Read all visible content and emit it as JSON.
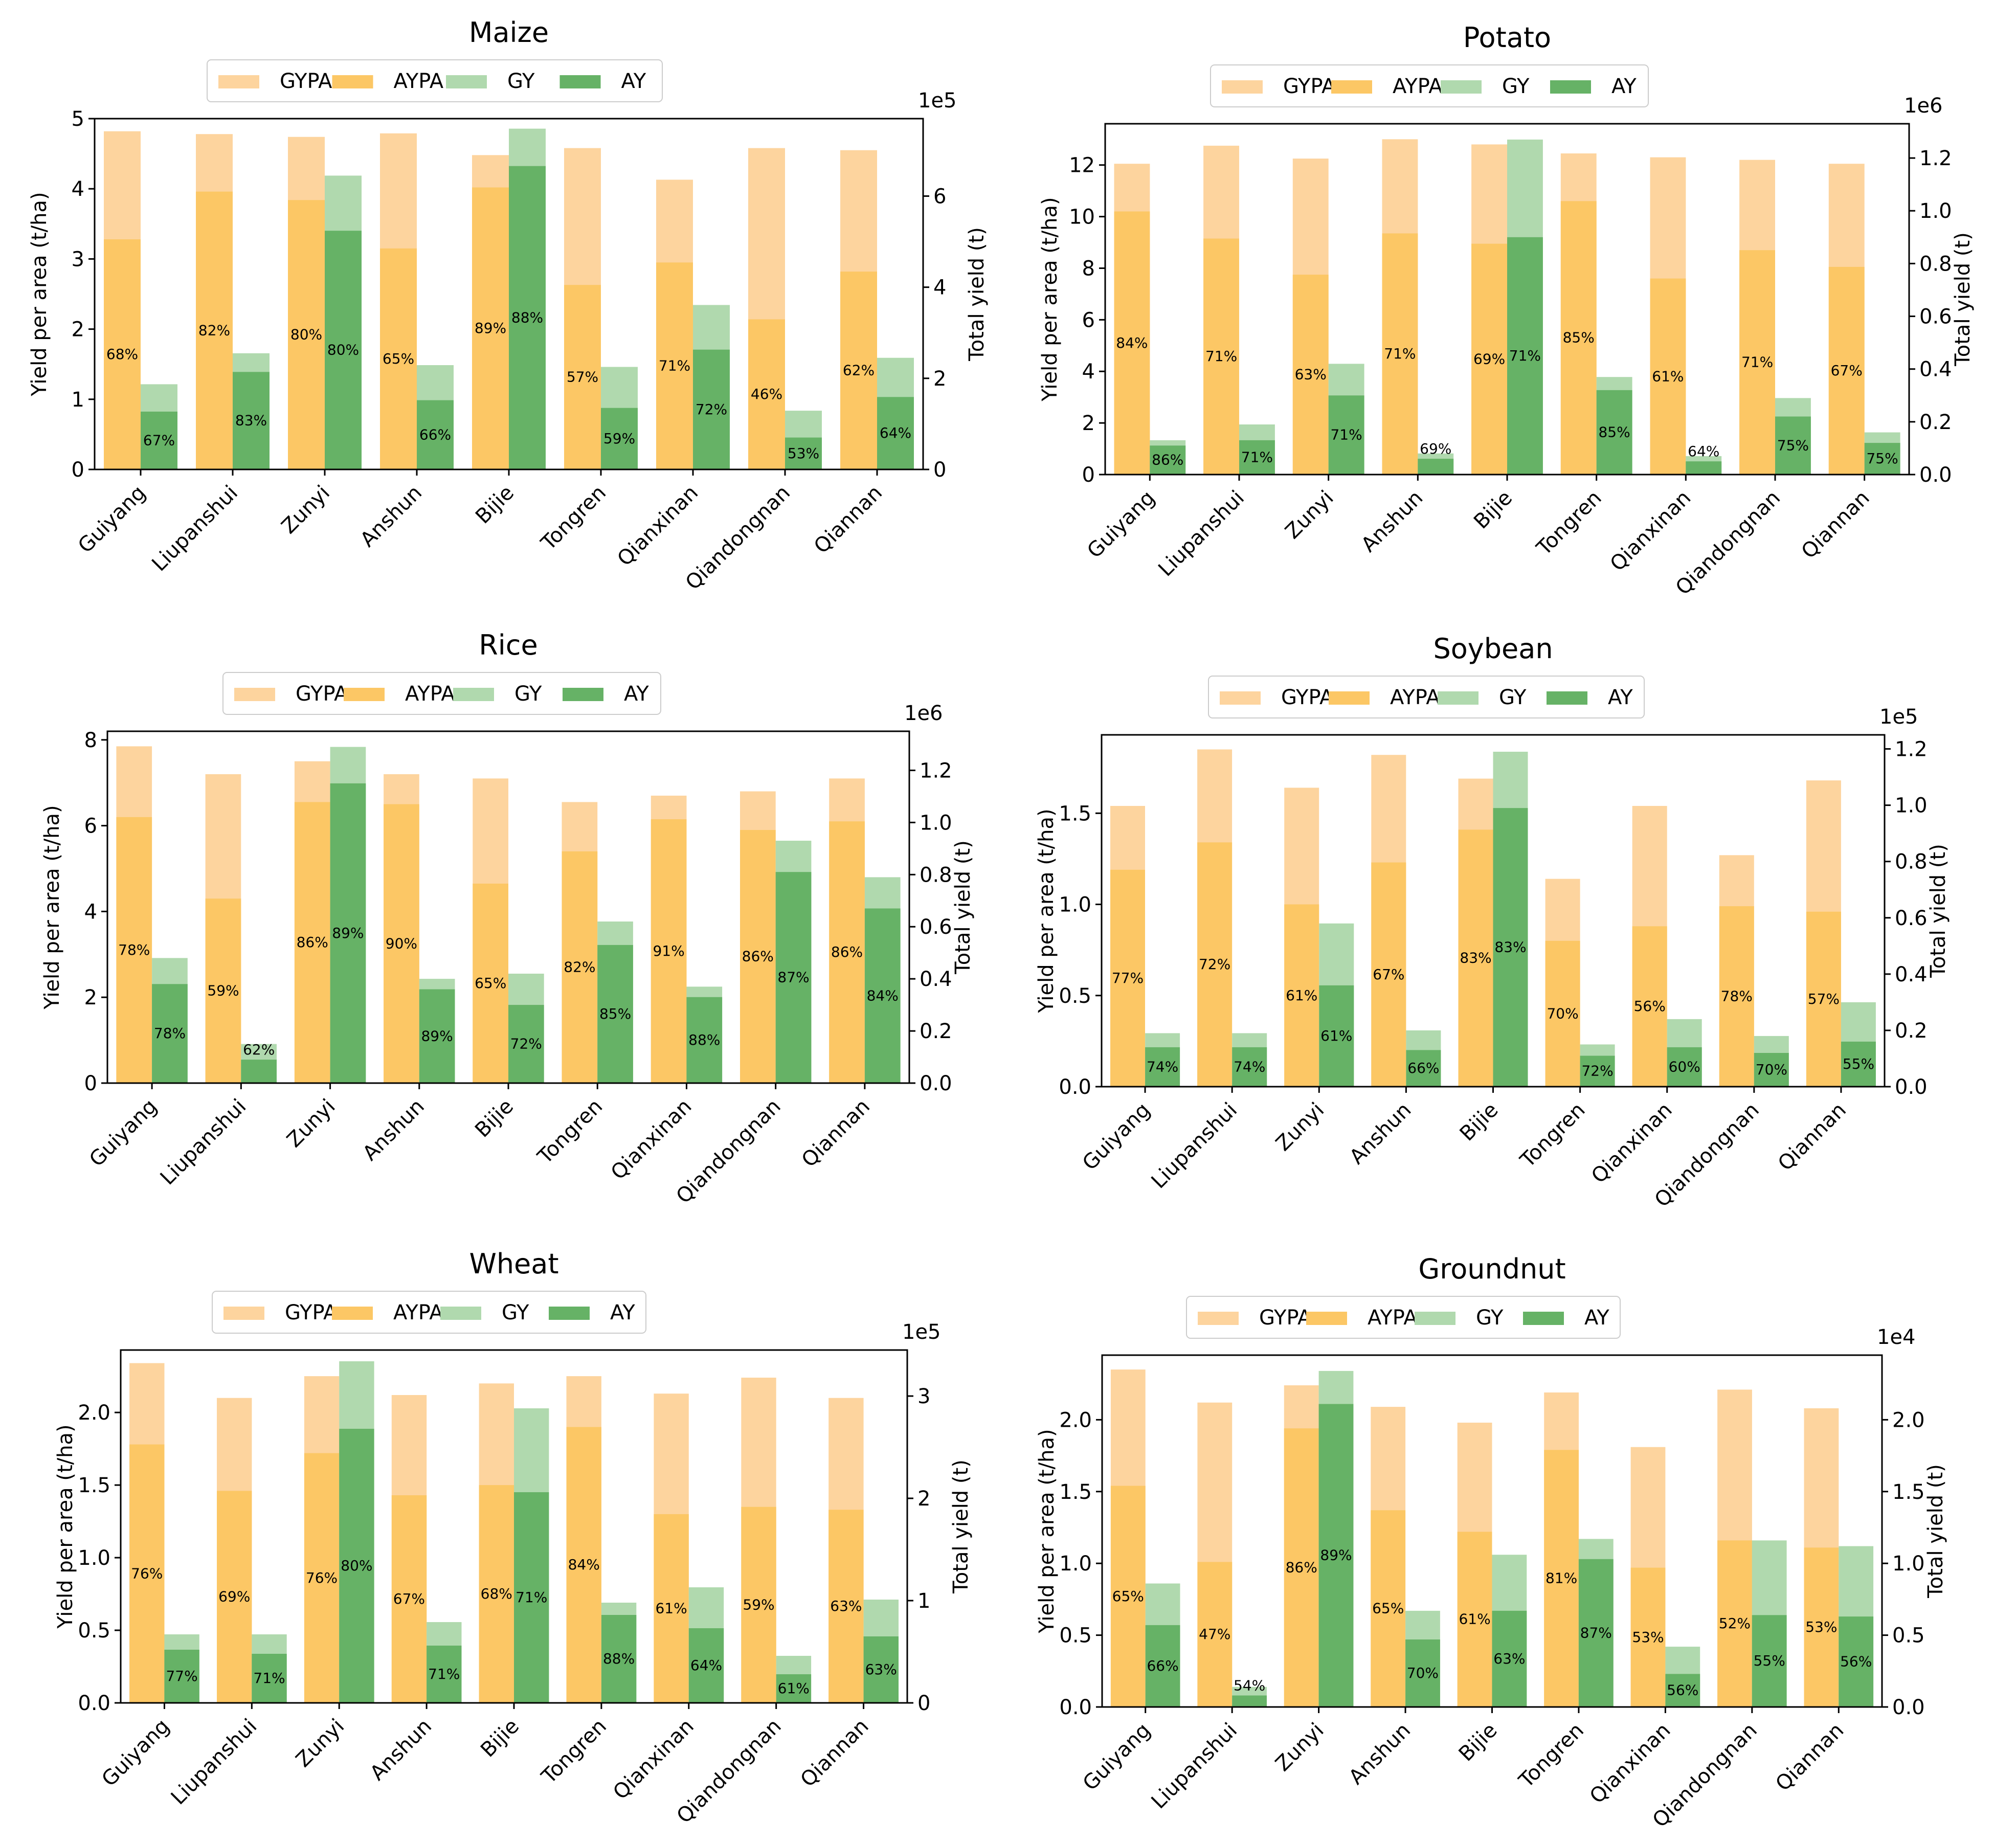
{
  "figure": {
    "left_axis_label": "Yield per area (t/ha)",
    "right_axis_label": "Total yield (t)"
  },
  "colors": {
    "GYPA": "#fdd49e",
    "AYPA": "#fcc765",
    "GY": "#b0d9ae",
    "AY": "#66b266",
    "axis": "#000000",
    "text": "#000000"
  },
  "chart_data": [
    {
      "type": "bar",
      "title": "Maize",
      "categories": [
        "Guiyang",
        "Liupanshui",
        "Zunyi",
        "Anshun",
        "Bijie",
        "Tongren",
        "Qianxinan",
        "Qiandongnan",
        "Qiannan"
      ],
      "legend": [
        "GYPA",
        "AYPA",
        "GY",
        "AY"
      ],
      "ylabel": "Yield per area (t/ha)",
      "ylim": [
        0,
        5
      ],
      "yticks": [
        0,
        1,
        2,
        3,
        4,
        5
      ],
      "ytick_labels": [
        "0",
        "1",
        "2",
        "3",
        "4",
        "5"
      ],
      "y2label": "Total yield (t)",
      "y2lim": [
        0,
        7.7
      ],
      "y2ticks": [
        0,
        2,
        4,
        6
      ],
      "y2tick_labels": [
        "0",
        "2",
        "4",
        "6"
      ],
      "y2_multiplier": "1e5",
      "series": [
        {
          "name": "GYPA",
          "axis": "left",
          "values": [
            4.82,
            4.78,
            4.74,
            4.79,
            4.48,
            4.58,
            4.13,
            4.58,
            4.55
          ]
        },
        {
          "name": "AYPA",
          "axis": "left",
          "values": [
            3.28,
            3.96,
            3.84,
            3.15,
            4.02,
            2.63,
            2.95,
            2.14,
            2.82
          ],
          "labels": [
            "68%",
            "82%",
            "80%",
            "65%",
            "89%",
            "57%",
            "71%",
            "46%",
            "62%"
          ]
        },
        {
          "name": "GY",
          "axis": "right",
          "values": [
            1.87,
            2.55,
            6.45,
            2.29,
            7.48,
            2.25,
            3.61,
            1.29,
            2.45
          ]
        },
        {
          "name": "AY",
          "axis": "right",
          "values": [
            1.27,
            2.14,
            5.24,
            1.52,
            6.66,
            1.35,
            2.63,
            0.7,
            1.59
          ],
          "labels": [
            "67%",
            "83%",
            "80%",
            "66%",
            "88%",
            "59%",
            "72%",
            "53%",
            "64%"
          ]
        }
      ]
    },
    {
      "type": "bar",
      "title": "Potato",
      "categories": [
        "Guiyang",
        "Liupanshui",
        "Zunyi",
        "Anshun",
        "Bijie",
        "Tongren",
        "Qianxinan",
        "Qiandongnan",
        "Qiannan"
      ],
      "legend": [
        "GYPA",
        "AYPA",
        "GY",
        "AY"
      ],
      "ylabel": "Yield per area (t/ha)",
      "ylim": [
        0,
        13.6
      ],
      "yticks": [
        0,
        2,
        4,
        6,
        8,
        10,
        12
      ],
      "ytick_labels": [
        "0",
        "2",
        "4",
        "6",
        "8",
        "10",
        "12"
      ],
      "y2label": "Total yield (t)",
      "y2lim": [
        0,
        1.33
      ],
      "y2ticks": [
        0,
        0.2,
        0.4,
        0.6,
        0.8,
        1.0,
        1.2
      ],
      "y2tick_labels": [
        "0.0",
        "0.2",
        "0.4",
        "0.6",
        "0.8",
        "1.0",
        "1.2"
      ],
      "y2_multiplier": "1e6",
      "series": [
        {
          "name": "GYPA",
          "axis": "left",
          "values": [
            12.05,
            12.75,
            12.25,
            13.0,
            12.8,
            12.45,
            12.3,
            12.2,
            12.05
          ]
        },
        {
          "name": "AYPA",
          "axis": "left",
          "values": [
            10.2,
            9.15,
            7.75,
            9.35,
            8.95,
            10.6,
            7.6,
            8.7,
            8.05
          ],
          "labels": [
            "84%",
            "71%",
            "63%",
            "71%",
            "69%",
            "85%",
            "61%",
            "71%",
            "67%"
          ]
        },
        {
          "name": "GY",
          "axis": "right",
          "values": [
            0.13,
            0.19,
            0.42,
            0.08,
            1.27,
            0.37,
            0.07,
            0.29,
            0.16
          ]
        },
        {
          "name": "AY",
          "axis": "right",
          "values": [
            0.11,
            0.13,
            0.3,
            0.06,
            0.9,
            0.32,
            0.05,
            0.22,
            0.12
          ],
          "labels": [
            "86%",
            "71%",
            "71%",
            "69%",
            "71%",
            "85%",
            "64%",
            "75%",
            "75%"
          ]
        }
      ]
    },
    {
      "type": "bar",
      "title": "Rice",
      "categories": [
        "Guiyang",
        "Liupanshui",
        "Zunyi",
        "Anshun",
        "Bijie",
        "Tongren",
        "Qianxinan",
        "Qiandongnan",
        "Qiannan"
      ],
      "legend": [
        "GYPA",
        "AYPA",
        "GY",
        "AY"
      ],
      "ylabel": "Yield per area (t/ha)",
      "ylim": [
        0,
        8.2
      ],
      "yticks": [
        0,
        2,
        4,
        6,
        8
      ],
      "ytick_labels": [
        "0",
        "2",
        "4",
        "6",
        "8"
      ],
      "y2label": "Total yield (t)",
      "y2lim": [
        0,
        1.35
      ],
      "y2ticks": [
        0,
        0.2,
        0.4,
        0.6,
        0.8,
        1.0,
        1.2
      ],
      "y2tick_labels": [
        "0.0",
        "0.2",
        "0.4",
        "0.6",
        "0.8",
        "1.0",
        "1.2"
      ],
      "y2_multiplier": "1e6",
      "series": [
        {
          "name": "GYPA",
          "axis": "left",
          "values": [
            7.85,
            7.2,
            7.5,
            7.2,
            7.1,
            6.55,
            6.7,
            6.8,
            7.1
          ]
        },
        {
          "name": "AYPA",
          "axis": "left",
          "values": [
            6.2,
            4.3,
            6.55,
            6.5,
            4.65,
            5.4,
            6.15,
            5.9,
            6.1
          ],
          "labels": [
            "78%",
            "59%",
            "86%",
            "90%",
            "65%",
            "82%",
            "91%",
            "86%",
            "86%"
          ]
        },
        {
          "name": "GY",
          "axis": "right",
          "values": [
            0.48,
            0.15,
            1.29,
            0.4,
            0.42,
            0.62,
            0.37,
            0.93,
            0.79
          ]
        },
        {
          "name": "AY",
          "axis": "right",
          "values": [
            0.38,
            0.09,
            1.15,
            0.36,
            0.3,
            0.53,
            0.33,
            0.81,
            0.67
          ],
          "labels": [
            "78%",
            "62%",
            "89%",
            "89%",
            "72%",
            "85%",
            "88%",
            "87%",
            "84%"
          ]
        }
      ]
    },
    {
      "type": "bar",
      "title": "Soybean",
      "categories": [
        "Guiyang",
        "Liupanshui",
        "Zunyi",
        "Anshun",
        "Bijie",
        "Tongren",
        "Qianxinan",
        "Qiandongnan",
        "Qiannan"
      ],
      "legend": [
        "GYPA",
        "AYPA",
        "GY",
        "AY"
      ],
      "ylabel": "Yield per area (t/ha)",
      "ylim": [
        0,
        1.93
      ],
      "yticks": [
        0,
        0.5,
        1.0,
        1.5
      ],
      "ytick_labels": [
        "0.0",
        "0.5",
        "1.0",
        "1.5"
      ],
      "y2label": "Total yield (t)",
      "y2lim": [
        0,
        1.25
      ],
      "y2ticks": [
        0,
        0.2,
        0.4,
        0.6,
        0.8,
        1.0,
        1.2
      ],
      "y2tick_labels": [
        "0.0",
        "0.2",
        "0.4",
        "0.6",
        "0.8",
        "1.0",
        "1.2"
      ],
      "y2_multiplier": "1e5",
      "series": [
        {
          "name": "GYPA",
          "axis": "left",
          "values": [
            1.54,
            1.85,
            1.64,
            1.82,
            1.69,
            1.14,
            1.54,
            1.27,
            1.68
          ]
        },
        {
          "name": "AYPA",
          "axis": "left",
          "values": [
            1.19,
            1.34,
            1.0,
            1.23,
            1.41,
            0.8,
            0.88,
            0.99,
            0.96
          ],
          "labels": [
            "77%",
            "72%",
            "61%",
            "67%",
            "83%",
            "70%",
            "56%",
            "78%",
            "57%"
          ]
        },
        {
          "name": "GY",
          "axis": "right",
          "values": [
            0.19,
            0.19,
            0.58,
            0.2,
            1.19,
            0.15,
            0.24,
            0.18,
            0.3
          ]
        },
        {
          "name": "AY",
          "axis": "right",
          "values": [
            0.14,
            0.14,
            0.36,
            0.13,
            0.99,
            0.11,
            0.14,
            0.12,
            0.16
          ],
          "labels": [
            "74%",
            "74%",
            "61%",
            "66%",
            "83%",
            "72%",
            "60%",
            "70%",
            "55%"
          ]
        }
      ]
    },
    {
      "type": "bar",
      "title": "Wheat",
      "categories": [
        "Guiyang",
        "Liupanshui",
        "Zunyi",
        "Anshun",
        "Bijie",
        "Tongren",
        "Qianxinan",
        "Qiandongnan",
        "Qiannan"
      ],
      "legend": [
        "GYPA",
        "AYPA",
        "GY",
        "AY"
      ],
      "ylabel": "Yield per area (t/ha)",
      "ylim": [
        0,
        2.43
      ],
      "yticks": [
        0,
        0.5,
        1.0,
        1.5,
        2.0
      ],
      "ytick_labels": [
        "0.0",
        "0.5",
        "1.0",
        "1.5",
        "2.0"
      ],
      "y2label": "Total yield (t)",
      "y2lim": [
        0,
        3.45
      ],
      "y2ticks": [
        0,
        1,
        2,
        3
      ],
      "y2tick_labels": [
        "0",
        "1",
        "2",
        "3"
      ],
      "y2_multiplier": "1e5",
      "series": [
        {
          "name": "GYPA",
          "axis": "left",
          "values": [
            2.34,
            2.1,
            2.25,
            2.12,
            2.2,
            2.25,
            2.13,
            2.24,
            2.1
          ]
        },
        {
          "name": "AYPA",
          "axis": "left",
          "values": [
            1.78,
            1.46,
            1.72,
            1.43,
            1.5,
            1.9,
            1.3,
            1.35,
            1.33
          ],
          "labels": [
            "76%",
            "69%",
            "76%",
            "67%",
            "68%",
            "84%",
            "61%",
            "59%",
            "63%"
          ]
        },
        {
          "name": "GY",
          "axis": "right",
          "values": [
            0.67,
            0.67,
            3.34,
            0.79,
            2.88,
            0.98,
            1.13,
            0.46,
            1.01
          ]
        },
        {
          "name": "AY",
          "axis": "right",
          "values": [
            0.52,
            0.48,
            2.68,
            0.56,
            2.06,
            0.86,
            0.73,
            0.28,
            0.65
          ],
          "labels": [
            "77%",
            "71%",
            "80%",
            "71%",
            "71%",
            "88%",
            "64%",
            "61%",
            "63%"
          ]
        }
      ]
    },
    {
      "type": "bar",
      "title": "Groundnut",
      "categories": [
        "Guiyang",
        "Liupanshui",
        "Zunyi",
        "Anshun",
        "Bijie",
        "Tongren",
        "Qianxinan",
        "Qiandongnan",
        "Qiannan"
      ],
      "legend": [
        "GYPA",
        "AYPA",
        "GY",
        "AY"
      ],
      "ylabel": "Yield per area (t/ha)",
      "ylim": [
        0,
        2.45
      ],
      "yticks": [
        0,
        0.5,
        1.0,
        1.5,
        2.0
      ],
      "ytick_labels": [
        "0.0",
        "0.5",
        "1.0",
        "1.5",
        "2.0"
      ],
      "y2label": "Total yield (t)",
      "y2lim": [
        0,
        2.45
      ],
      "y2ticks": [
        0,
        0.5,
        1.0,
        1.5,
        2.0
      ],
      "y2tick_labels": [
        "0.0",
        "0.5",
        "1.0",
        "1.5",
        "2.0"
      ],
      "y2_multiplier": "1e4",
      "series": [
        {
          "name": "GYPA",
          "axis": "left",
          "values": [
            2.35,
            2.12,
            2.24,
            2.09,
            1.98,
            2.19,
            1.81,
            2.21,
            2.08
          ]
        },
        {
          "name": "AYPA",
          "axis": "left",
          "values": [
            1.54,
            1.01,
            1.94,
            1.37,
            1.22,
            1.79,
            0.97,
            1.16,
            1.11
          ],
          "labels": [
            "65%",
            "47%",
            "86%",
            "65%",
            "61%",
            "81%",
            "53%",
            "52%",
            "53%"
          ]
        },
        {
          "name": "GY",
          "axis": "right",
          "values": [
            0.86,
            0.14,
            2.34,
            0.67,
            1.06,
            1.17,
            0.42,
            1.16,
            1.12
          ]
        },
        {
          "name": "AY",
          "axis": "right",
          "values": [
            0.57,
            0.08,
            2.11,
            0.47,
            0.67,
            1.03,
            0.23,
            0.64,
            0.63
          ],
          "labels": [
            "66%",
            "54%",
            "89%",
            "70%",
            "63%",
            "87%",
            "56%",
            "55%",
            "56%"
          ]
        }
      ]
    }
  ]
}
